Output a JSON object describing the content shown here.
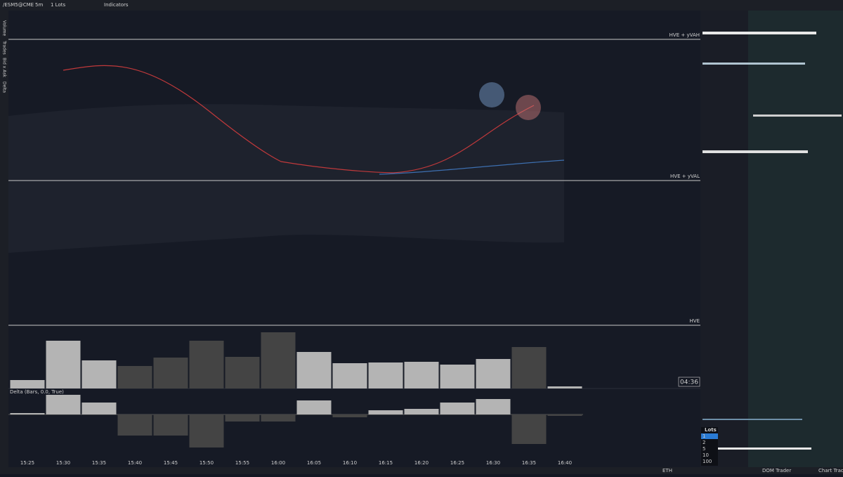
{
  "toolbar": {
    "symbol": "/ESM5@CME",
    "timeframe": "5m",
    "lots": "1 Lots",
    "indicators": "Indicators"
  },
  "sidebar": {
    "labels": [
      "Volume",
      "Trades",
      "Bid x Ask",
      "Delta"
    ]
  },
  "levels": [
    {
      "label": "HVE + yVAH"
    },
    {
      "label": "HVE + yVAL"
    },
    {
      "label": "HVE"
    }
  ],
  "timer": "04:36",
  "lots_panel": {
    "title": "Lots",
    "options": [
      "1",
      "2",
      "5",
      "10",
      "100"
    ]
  },
  "bottom_bar": {
    "session": "ETH",
    "tabs": [
      "DOM Trader",
      "Chart Trader"
    ]
  },
  "chart_data": [
    {
      "type": "bar",
      "categories": [
        "15:25",
        "15:30",
        "15:35",
        "15:40",
        "15:45",
        "15:50",
        "15:55",
        "16:00",
        "16:05",
        "16:10",
        "16:15",
        "16:20",
        "16:25",
        "16:30",
        "16:35",
        "16:40"
      ],
      "values": [
        12,
        68,
        40,
        32,
        44,
        68,
        45,
        80,
        52,
        36,
        37,
        38,
        34,
        42,
        59,
        3
      ],
      "colors": [
        "#b4b4b4",
        "#b4b4b4",
        "#b4b4b4",
        "#444",
        "#444",
        "#444",
        "#444",
        "#444",
        "#b4b4b4",
        "#b4b4b4",
        "#b4b4b4",
        "#b4b4b4",
        "#b4b4b4",
        "#b4b4b4",
        "#444",
        "#b4b4b4"
      ]
    },
    {
      "type": "bar",
      "title": "Delta (Bars, 0.0, True)",
      "values": [
        2,
        28,
        17,
        -30,
        -30,
        -47,
        -10,
        -10,
        20,
        -4,
        6,
        8,
        17,
        22,
        -42,
        -2
      ],
      "colors": [
        "#b4b4b4",
        "#b4b4b4",
        "#b4b4b4",
        "#444",
        "#444",
        "#444",
        "#444",
        "#444",
        "#b4b4b4",
        "#444",
        "#b4b4b4",
        "#b4b4b4",
        "#b4b4b4",
        "#b4b4b4",
        "#444",
        "#444"
      ]
    }
  ]
}
